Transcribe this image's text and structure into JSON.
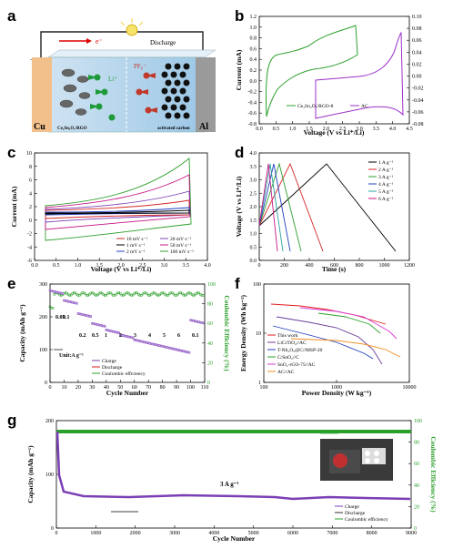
{
  "figure": {
    "panel_labels": [
      "a",
      "b",
      "c",
      "d",
      "e",
      "f",
      "g"
    ]
  },
  "panel_a": {
    "discharge": "Discharge",
    "electron": "e⁻",
    "plus": "+",
    "minus": "−",
    "li_ion": "Li⁺",
    "pf6": "PF₆⁻",
    "cu": "Cu",
    "al": "Al",
    "anode_label": "Ce₂Sn₂O₇/RGO",
    "cathode_label": "activated carbon"
  },
  "panel_b": {
    "xlabel": "Voltage (V vs Li⁺/Li)",
    "ylabel": "Current (mA)",
    "xticks": [
      "0.0",
      "0.5",
      "1.0",
      "1.5",
      "2.0",
      "2.5",
      "3.0",
      "3.5",
      "4.0",
      "4.5"
    ],
    "yticks_left": [
      "-0.8",
      "-0.6",
      "-0.4",
      "-0.2",
      "0.0",
      "0.2",
      "0.4",
      "0.6",
      "0.8",
      "1.0",
      "1.2"
    ],
    "yticks_right": [
      "-0.08",
      "-0.06",
      "-0.04",
      "-0.02",
      "0.00",
      "0.02",
      "0.04",
      "0.06",
      "0.08",
      "0.10"
    ],
    "legend": [
      "Ce₂Sn₂O₇/RGO-8",
      "AC"
    ],
    "colors": {
      "a": "#2ca02c",
      "b": "#9b30c8"
    }
  },
  "panel_c": {
    "xlabel": "Voltage (V vs Li⁺/Li)",
    "ylabel": "Current (mA)",
    "xticks": [
      "0.0",
      "0.5",
      "1.0",
      "1.5",
      "2.0",
      "2.5",
      "3.0",
      "3.5",
      "4.0"
    ],
    "yticks": [
      "-6",
      "-4",
      "-2",
      "0",
      "2",
      "4",
      "6",
      "8",
      "10"
    ],
    "legend": [
      "10 mV s⁻¹",
      "20 mV s⁻¹",
      "1 mV s⁻¹",
      "50 mV s⁻¹",
      "2 mV s⁻¹",
      "100 mV s⁻¹"
    ]
  },
  "panel_d": {
    "xlabel": "Time (s)",
    "ylabel": "Voltage (V vs Li⁺/Li)",
    "xticks": [
      "0",
      "200",
      "400",
      "600",
      "800",
      "1000",
      "1200"
    ],
    "yticks": [
      "0.0",
      "0.5",
      "1.0",
      "1.5",
      "2.0",
      "2.5",
      "3.0",
      "3.5",
      "4.0"
    ],
    "legend": [
      "1 A g⁻¹",
      "2 A g⁻¹",
      "3 A g⁻¹",
      "4 A g⁻¹",
      "5 A g⁻¹",
      "6 A g⁻¹"
    ]
  },
  "panel_e": {
    "xlabel": "Cycle Number",
    "ylabel": "Capacity (mAh g⁻¹)",
    "ylabel2": "Coulombic Efficiency (%)",
    "xticks": [
      "0",
      "10",
      "20",
      "30",
      "40",
      "50",
      "60",
      "70",
      "80",
      "90",
      "100",
      "110"
    ],
    "yticks": [
      "0",
      "100",
      "200",
      "300"
    ],
    "yticks2": [
      "0",
      "20",
      "40",
      "60",
      "80",
      "100"
    ],
    "rate_labels": [
      "0.05",
      "0.1",
      "0.2",
      "0.5",
      "1",
      "2",
      "3",
      "4",
      "5",
      "6",
      "0.1"
    ],
    "unit": "Unit:A g⁻¹",
    "legend": [
      "Charge",
      "Discharge",
      "Coulombic efficiency"
    ]
  },
  "panel_f": {
    "xlabel": "Power Density (W kg⁻¹)",
    "ylabel": "Energy Density (Wh kg⁻¹)",
    "xticks": [
      "100",
      "1000",
      "10000"
    ],
    "yticks": [
      "1",
      "10",
      "100"
    ],
    "legend": [
      "This work",
      "LiCrTiO₄//AC",
      "T-Nb₂O₅@C//MSP-20",
      "C/SnO₂//C",
      "SnO₂-rGO-75//AC",
      "AC//AC"
    ]
  },
  "panel_g": {
    "xlabel": "Cycle Number",
    "ylabel": "Capacity (mAh g⁻¹)",
    "ylabel2": "Coulombic Efficiency (%)",
    "xticks": [
      "0",
      "1000",
      "2000",
      "3000",
      "4000",
      "5000",
      "6000",
      "7000",
      "8000",
      "9000"
    ],
    "yticks": [
      "0",
      "100",
      "200"
    ],
    "yticks2": [
      "0",
      "20",
      "40",
      "60",
      "80",
      "100"
    ],
    "rate": "3 A g⁻¹",
    "legend": [
      "Charge",
      "Discharge",
      "Coulombic efficiency"
    ]
  }
}
